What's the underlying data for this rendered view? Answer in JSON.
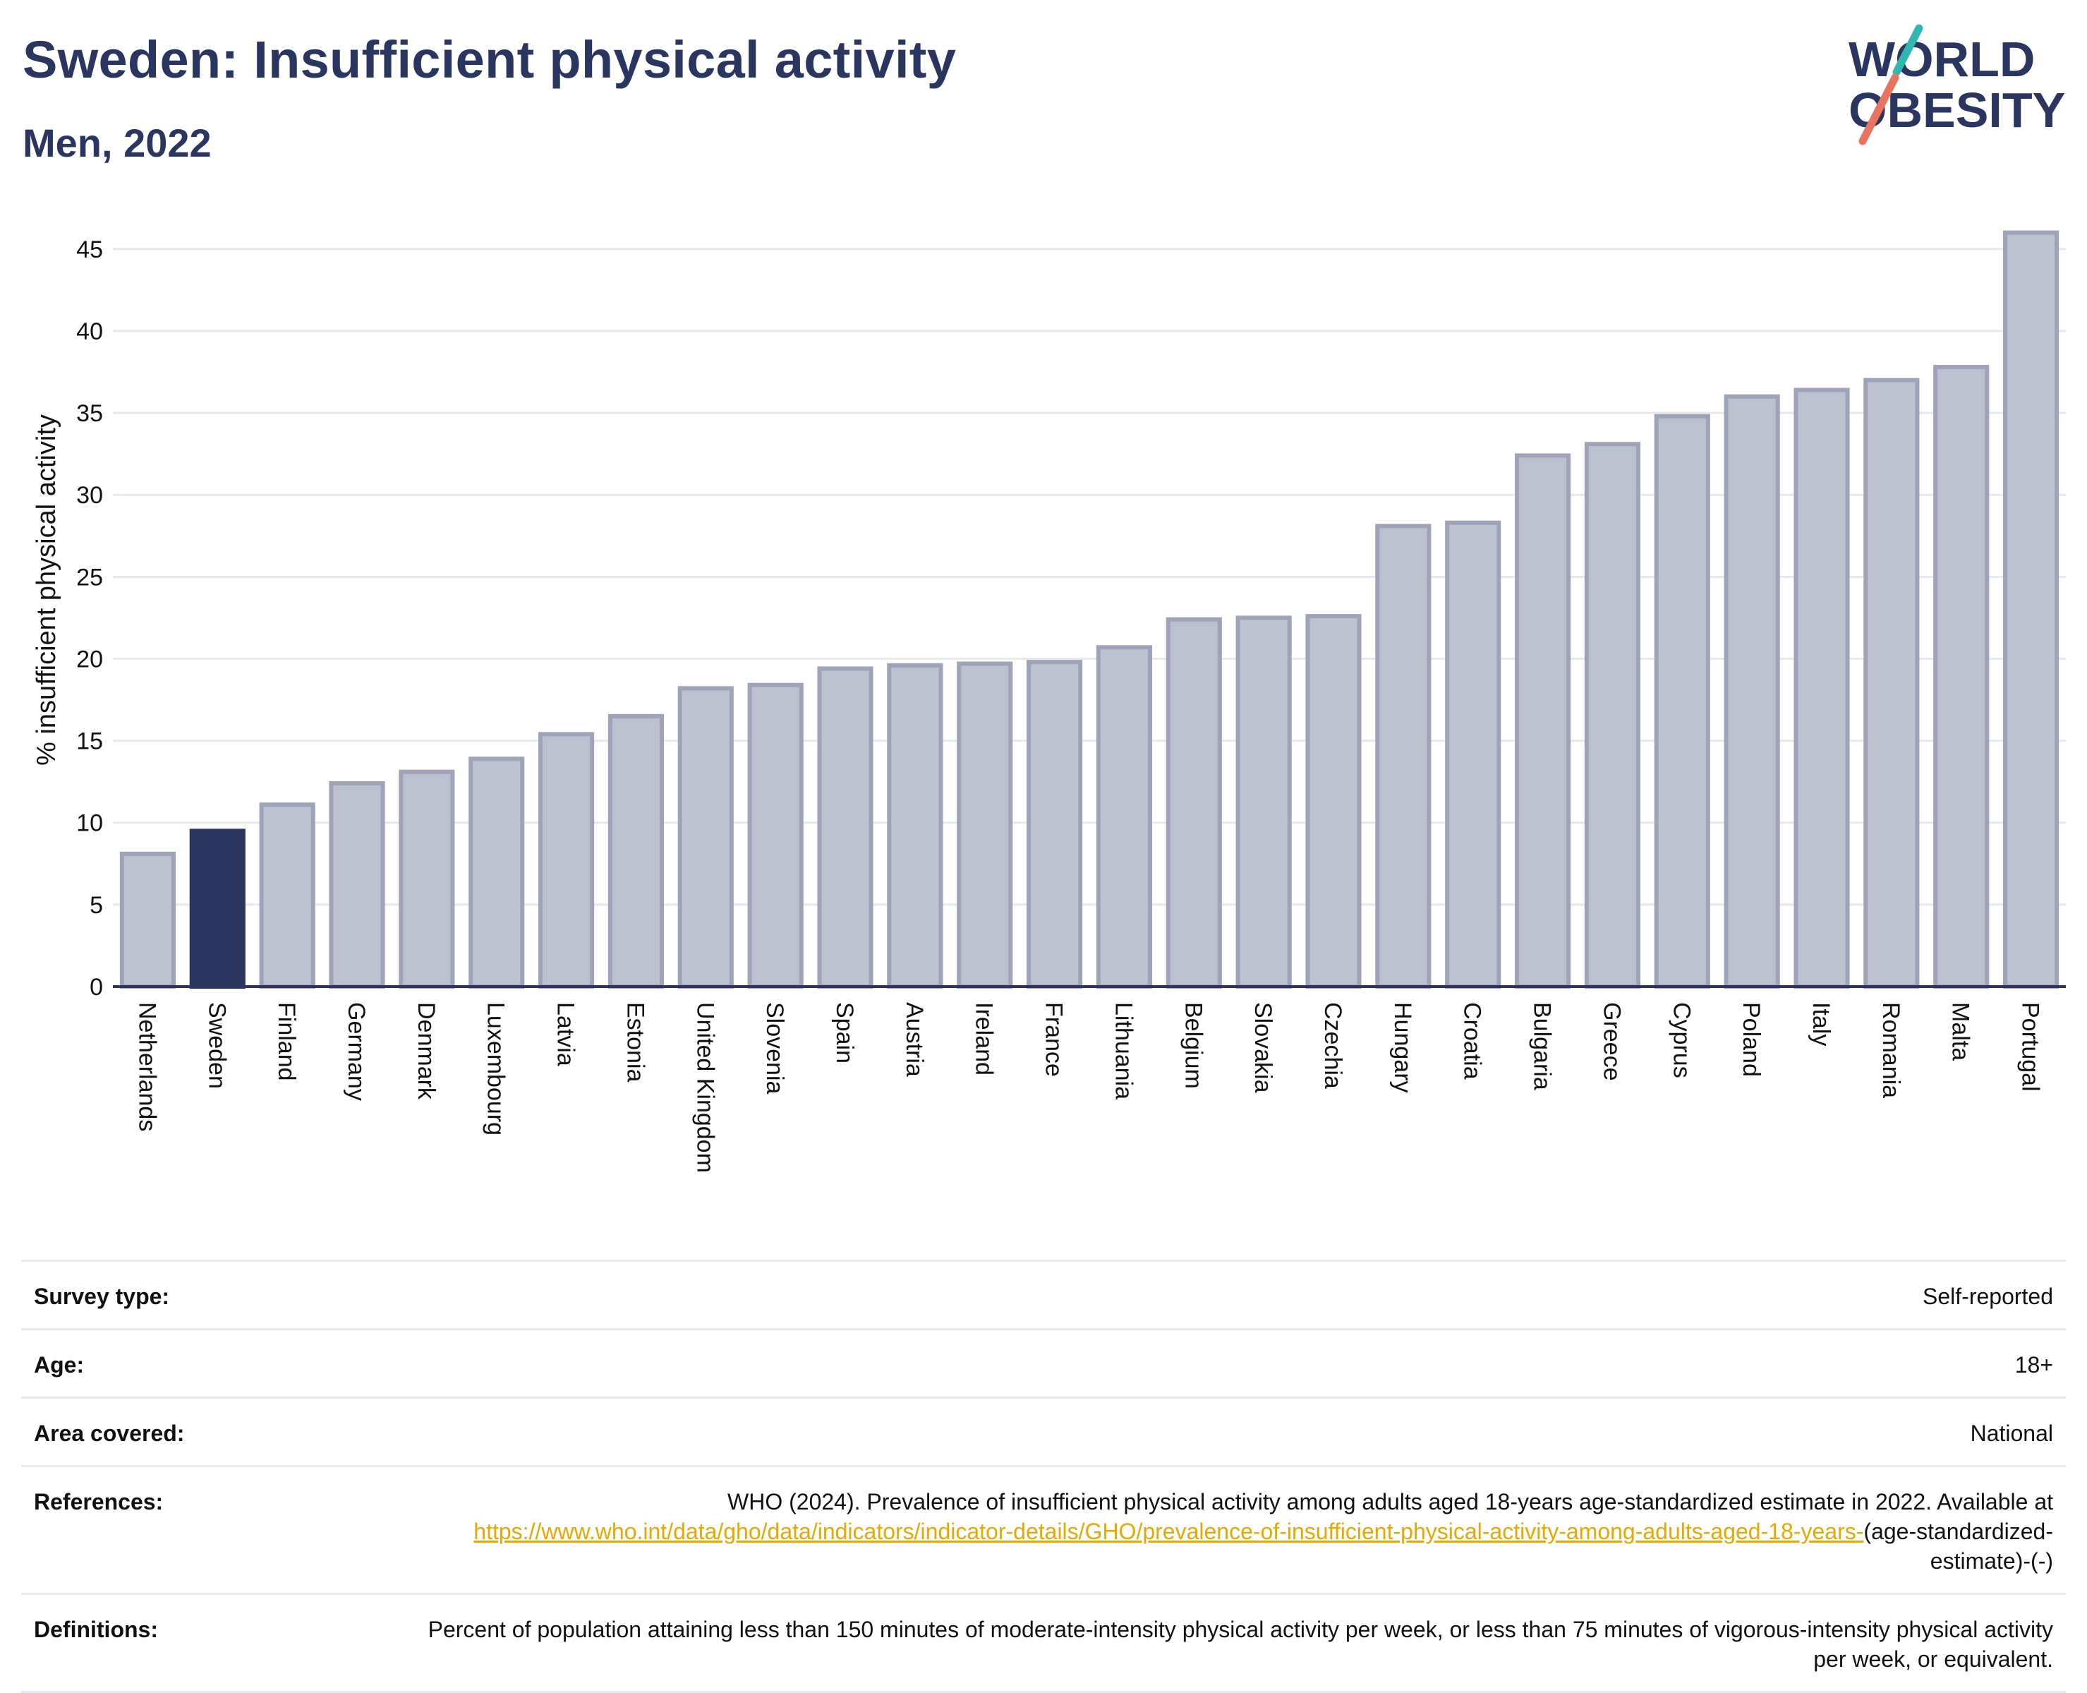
{
  "header": {
    "title": "Sweden: Insufficient physical activity",
    "subtitle": "Men, 2022"
  },
  "logo": {
    "line1": "WORLD",
    "line2": "OBESITY",
    "colors": {
      "navy": "#2b3660",
      "teal": "#2fb8b0",
      "coral": "#e8735f"
    }
  },
  "chart_data": {
    "type": "bar",
    "title": "Sweden: Insufficient physical activity",
    "subtitle": "Men, 2022",
    "xlabel": "",
    "ylabel": "% insufficient physical activity",
    "ylim": [
      0,
      46.5
    ],
    "yticks": [
      0,
      5,
      10,
      15,
      20,
      25,
      30,
      35,
      40,
      45
    ],
    "grid": true,
    "legend": "none",
    "highlight": "Sweden",
    "colors": {
      "bar": "#bdc0ce",
      "bar_edge": "#9ea3ba",
      "highlight": "#2b3660",
      "grid": "#e7e8ee",
      "axis": "#2b3660"
    },
    "categories": [
      "Netherlands",
      "Sweden",
      "Finland",
      "Germany",
      "Denmark",
      "Luxembourg",
      "Latvia",
      "Estonia",
      "United Kingdom",
      "Slovenia",
      "Spain",
      "Austria",
      "Ireland",
      "France",
      "Lithuania",
      "Belgium",
      "Slovakia",
      "Czechia",
      "Hungary",
      "Croatia",
      "Bulgaria",
      "Greece",
      "Cyprus",
      "Poland",
      "Italy",
      "Romania",
      "Malta",
      "Portugal"
    ],
    "values": [
      8.1,
      9.5,
      11.1,
      12.4,
      13.1,
      13.9,
      15.4,
      16.5,
      18.2,
      18.4,
      19.4,
      19.6,
      19.7,
      19.8,
      20.7,
      22.4,
      22.5,
      22.6,
      28.1,
      28.3,
      32.4,
      33.1,
      34.8,
      36.0,
      36.4,
      37.0,
      37.8,
      46.0
    ]
  },
  "meta": {
    "rows": [
      {
        "key": "Survey type:",
        "value": "Self-reported"
      },
      {
        "key": "Age:",
        "value": "18+"
      },
      {
        "key": "Area covered:",
        "value": "National"
      }
    ],
    "references": {
      "key": "References:",
      "text": "WHO (2024). Prevalence of insufficient physical activity among adults aged 18-years age-standardized estimate in 2022. Available at",
      "link": "https://www.who.int/data/gho/data/indicators/indicator-details/GHO/prevalence-of-insufficient-physical-activity-among-adults-aged-18-years-",
      "suffix": "(age-standardized-estimate)-(-)"
    },
    "definitions": {
      "key": "Definitions:",
      "value": "Percent of population attaining less than 150 minutes of moderate-intensity physical activity per week, or less than 75 minutes of vigorous-intensity physical activity per week, or equivalent."
    }
  }
}
